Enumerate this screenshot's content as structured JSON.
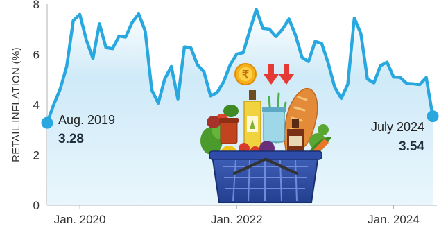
{
  "chart_data": {
    "type": "area",
    "ylabel": "RETAIL INFLATION (%)",
    "xlabel": "",
    "title": "",
    "ylim": [
      0,
      8
    ],
    "yticks": [
      "0",
      "2",
      "4",
      "6",
      "8"
    ],
    "xticks": [
      {
        "label": "Jan. 2020",
        "x": "2020-01"
      },
      {
        "label": "Jan. 2022",
        "x": "2022-01"
      },
      {
        "label": "Jan. 2024",
        "x": "2024-01"
      }
    ],
    "grid": false,
    "series": [
      {
        "x": [
          "2019-08",
          "2019-09",
          "2019-10",
          "2019-11",
          "2019-12",
          "2020-01",
          "2020-02",
          "2020-03",
          "2020-04",
          "2020-05",
          "2020-06",
          "2020-07",
          "2020-08",
          "2020-09",
          "2020-10",
          "2020-11",
          "2020-12",
          "2021-01",
          "2021-02",
          "2021-03",
          "2021-04",
          "2021-05",
          "2021-06",
          "2021-07",
          "2021-08",
          "2021-09",
          "2021-10",
          "2021-11",
          "2021-12",
          "2022-01",
          "2022-02",
          "2022-03",
          "2022-04",
          "2022-05",
          "2022-06",
          "2022-07",
          "2022-08",
          "2022-09",
          "2022-10",
          "2022-11",
          "2022-12",
          "2023-01",
          "2023-02",
          "2023-03",
          "2023-04",
          "2023-05",
          "2023-06",
          "2023-07",
          "2023-08",
          "2023-09",
          "2023-10",
          "2023-11",
          "2023-12",
          "2024-01",
          "2024-02",
          "2024-03",
          "2024-04",
          "2024-05",
          "2024-06",
          "2024-07"
        ],
        "values": [
          3.28,
          4.0,
          4.62,
          5.54,
          7.35,
          7.59,
          6.58,
          5.84,
          7.22,
          6.27,
          6.23,
          6.73,
          6.69,
          7.27,
          7.61,
          6.93,
          4.59,
          4.06,
          5.03,
          5.52,
          4.23,
          6.3,
          6.26,
          5.59,
          5.3,
          4.35,
          4.48,
          4.91,
          5.59,
          6.01,
          6.07,
          6.95,
          7.79,
          7.04,
          7.01,
          6.71,
          7.0,
          7.41,
          6.77,
          5.88,
          5.72,
          6.52,
          6.44,
          5.66,
          4.7,
          4.25,
          4.81,
          7.44,
          6.83,
          5.02,
          4.87,
          5.55,
          5.69,
          5.1,
          5.09,
          4.85,
          4.83,
          4.8,
          5.08,
          3.54
        ],
        "color": "#29a8e0"
      }
    ],
    "annotations": [
      {
        "date": "Aug. 2019",
        "value": "3.28",
        "x": "2019-08"
      },
      {
        "date": "July 2024",
        "value": "3.54",
        "x": "2024-07"
      }
    ],
    "colors": {
      "line": "#29a8e0",
      "area_top": "#d6eef9",
      "area_bottom": "#ffffff",
      "text": "#333333",
      "value_text": "#1f2d3d",
      "arrow": "#e53935"
    }
  }
}
